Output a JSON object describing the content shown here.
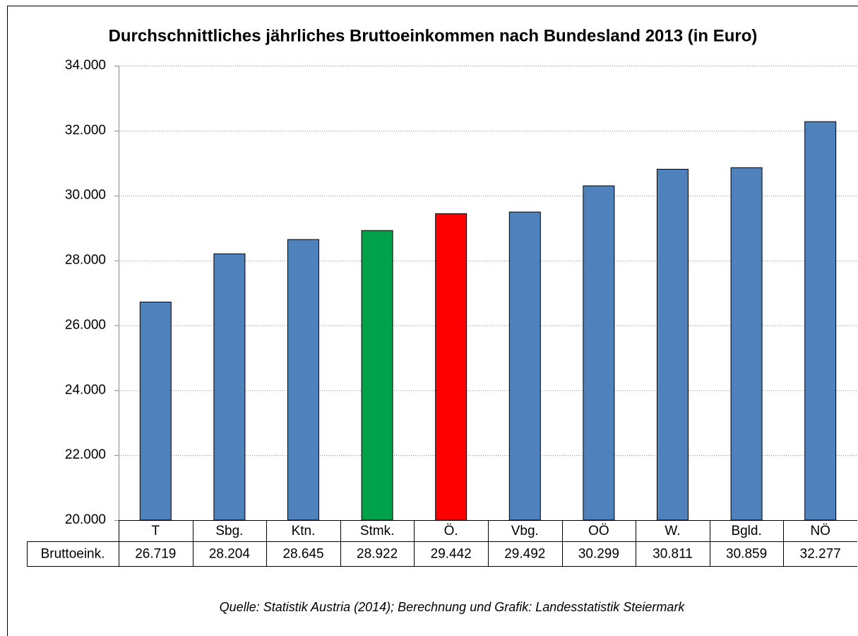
{
  "chart_data": {
    "type": "bar",
    "title": "Durchschnittliches jährliches Bruttoeinkommen nach Bundesland 2013 (in Euro)",
    "categories": [
      "T",
      "Sbg.",
      "Ktn.",
      "Stmk.",
      "Ö.",
      "Vbg.",
      "OÖ",
      "W.",
      "Bgld.",
      "NÖ"
    ],
    "series": [
      {
        "name": "Bruttoeink.",
        "colors": [
          "#4f81bd",
          "#4f81bd",
          "#4f81bd",
          "#00a14b",
          "#ff0000",
          "#4f81bd",
          "#4f81bd",
          "#4f81bd",
          "#4f81bd",
          "#4f81bd"
        ],
        "values": [
          26719,
          28204,
          28645,
          28922,
          29442,
          29492,
          30299,
          30811,
          30859,
          32277
        ],
        "value_labels": [
          "26.719",
          "28.204",
          "28.645",
          "28.922",
          "29.442",
          "29.492",
          "30.299",
          "30.811",
          "30.859",
          "32.277"
        ]
      }
    ],
    "ylim": [
      20000,
      34000
    ],
    "yticks": [
      {
        "value": 20000,
        "label": "20.000"
      },
      {
        "value": 22000,
        "label": "22.000"
      },
      {
        "value": 24000,
        "label": "24.000"
      },
      {
        "value": 26000,
        "label": "26.000"
      },
      {
        "value": 28000,
        "label": "28.000"
      },
      {
        "value": 30000,
        "label": "30.000"
      },
      {
        "value": 32000,
        "label": "32.000"
      },
      {
        "value": 34000,
        "label": "34.000"
      }
    ],
    "grid": true,
    "source": "Quelle: Statistik Austria  (2014); Berechnung und Grafik: Landesstatistik Steiermark"
  }
}
